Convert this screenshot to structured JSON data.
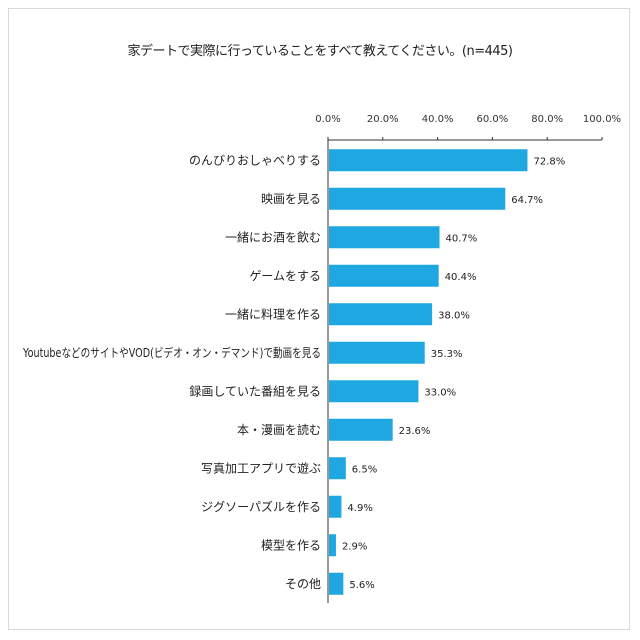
{
  "chart_data": {
    "type": "bar",
    "orientation": "horizontal",
    "title": "家デートで実際に行っていることをすべて教えてください。(n=445)",
    "categories": [
      "のんびりおしゃべりする",
      "映画を見る",
      "一緒にお酒を飲む",
      "ゲームをする",
      "一緒に料理を作る",
      "YoutubeなどのサイトやVOD(ビデオ・オン・デマンド)で動画を見る",
      "録画していた番組を見る",
      "本・漫画を読む",
      "写真加工アプリで遊ぶ",
      "ジグソーパズルを作る",
      "模型を作る",
      "その他"
    ],
    "values": [
      72.8,
      64.7,
      40.7,
      40.4,
      38.0,
      35.3,
      33.0,
      23.6,
      6.5,
      4.9,
      2.9,
      5.6
    ],
    "value_labels": [
      "72.8%",
      "64.7%",
      "40.7%",
      "40.4%",
      "38.0%",
      "35.3%",
      "33.0%",
      "23.6%",
      "6.5%",
      "4.9%",
      "2.9%",
      "5.6%"
    ],
    "xlim": [
      0,
      100
    ],
    "x_ticks": [
      "0.0%",
      "20.0%",
      "40.0%",
      "60.0%",
      "80.0%",
      "100.0%"
    ],
    "x_tick_values": [
      0,
      20,
      40,
      60,
      80,
      100
    ],
    "axis_position": "top",
    "grid": false,
    "legend": "none",
    "bar_color": "#1ea7e1"
  }
}
